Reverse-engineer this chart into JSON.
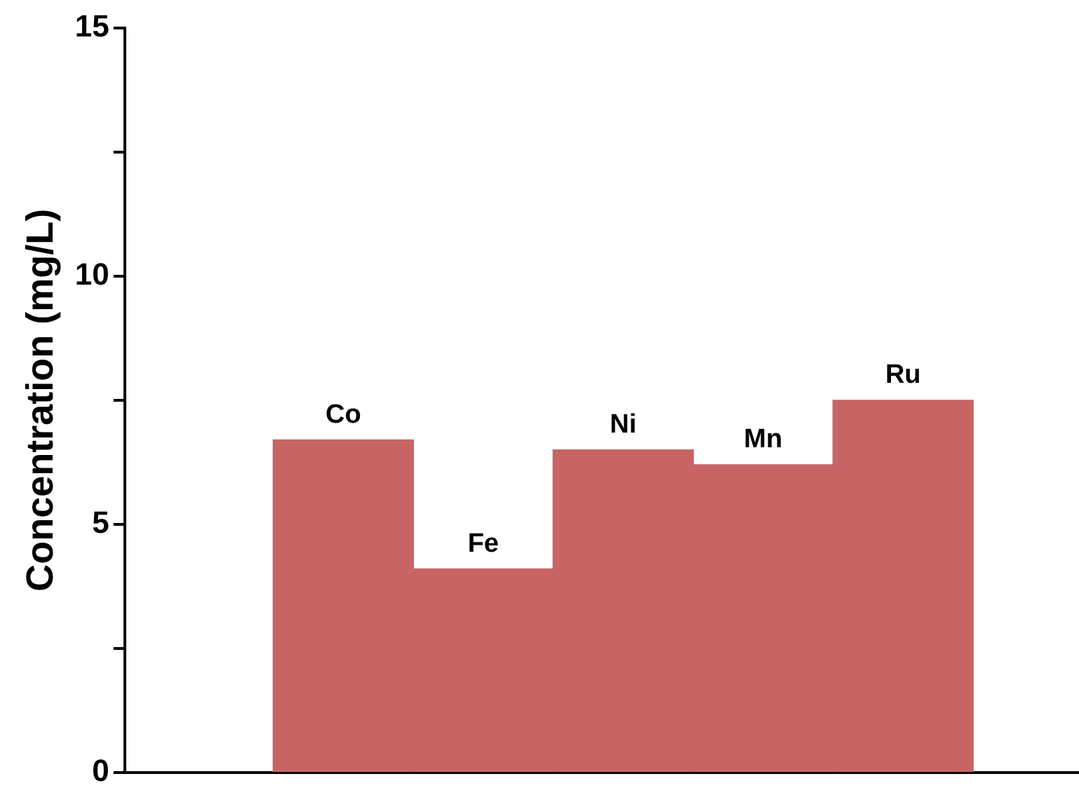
{
  "chart_data": {
    "type": "bar",
    "ylabel": "Concentration (mg/L)",
    "categories": [
      "Co",
      "Fe",
      "Ni",
      "Mn",
      "Ru"
    ],
    "values": [
      6.7,
      4.1,
      6.5,
      6.2,
      7.5
    ],
    "color": "#c86464",
    "ylim": [
      0,
      15
    ],
    "yticks": [
      0,
      5,
      10,
      15
    ],
    "grid": false,
    "legend": false
  }
}
